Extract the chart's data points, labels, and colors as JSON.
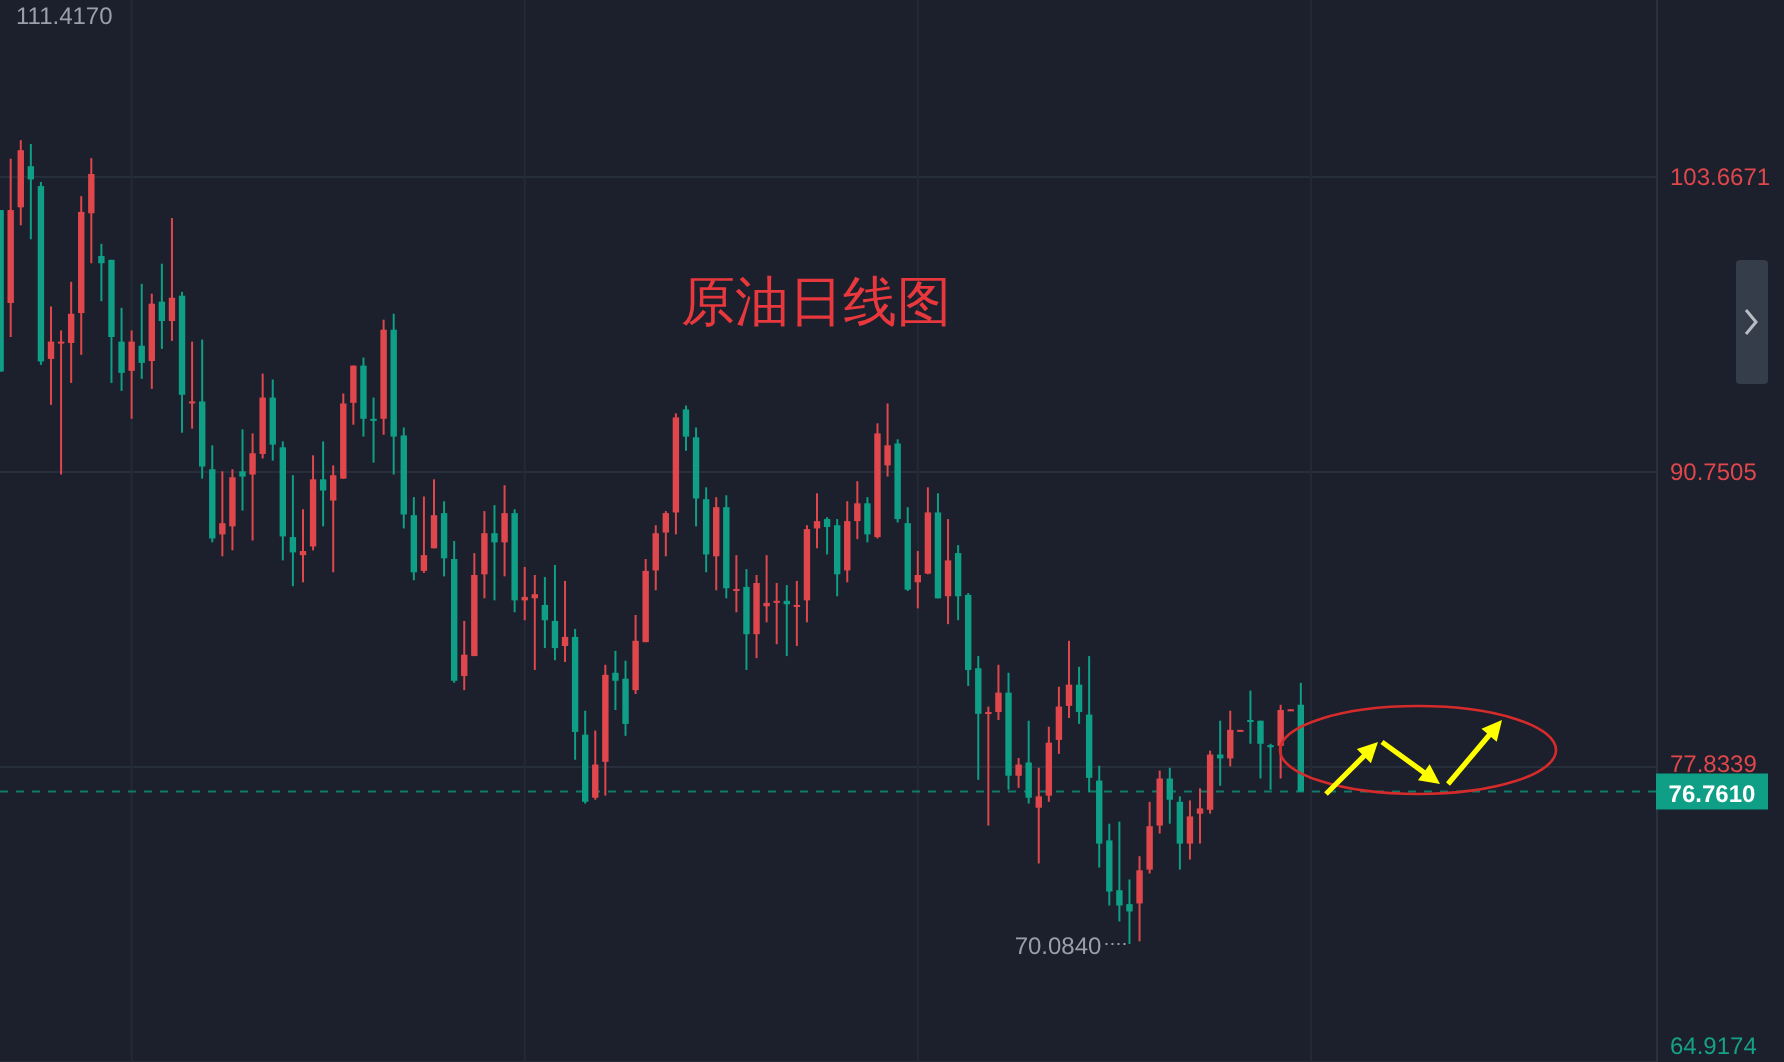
{
  "chart_data": {
    "type": "candlestick",
    "title": "原油日线图",
    "categories": [
      null,
      null,
      null,
      null,
      null,
      null,
      null,
      null,
      null,
      null,
      null,
      null,
      null,
      null,
      null,
      null,
      null,
      null,
      null,
      null,
      null,
      null,
      null,
      null,
      null,
      null,
      null,
      null,
      null,
      null,
      null,
      null,
      null,
      null,
      null,
      null,
      null,
      null,
      null,
      null,
      null,
      null,
      null,
      null,
      null,
      null,
      null,
      null,
      null,
      null,
      null,
      null,
      null,
      null,
      null,
      null,
      null,
      null,
      null,
      null,
      null,
      null,
      null,
      null,
      null,
      null,
      null,
      null,
      null,
      null,
      null,
      null,
      null,
      null,
      null,
      null,
      null,
      null,
      null,
      null,
      null,
      null,
      null,
      null,
      null,
      null,
      null,
      null,
      null,
      null,
      null,
      null,
      null,
      null,
      null,
      null,
      null,
      null,
      null,
      null,
      null,
      null,
      null,
      null,
      null,
      null,
      null,
      null,
      null,
      null,
      null,
      null,
      null,
      null,
      null,
      null,
      null,
      null,
      null,
      null,
      null,
      null,
      null,
      null,
      null,
      null,
      null,
      null,
      null,
      null,
      null,
      null,
      null,
      null,
      null,
      null,
      null,
      null,
      null,
      null,
      null,
      null,
      null,
      null,
      null,
      null,
      null,
      null,
      null,
      null,
      null,
      null,
      null,
      null,
      null,
      null,
      null,
      null,
      null,
      null,
      null,
      null,
      null,
      null,
      null
    ],
    "ohlc": [
      [
        102.22,
        102.22,
        95.15,
        95.15
      ],
      [
        98.15,
        104.47,
        96.66,
        102.22
      ],
      [
        102.34,
        105.28,
        101.55,
        104.84
      ],
      [
        104.14,
        105.11,
        100.94,
        103.56
      ],
      [
        103.27,
        103.45,
        95.44,
        95.59
      ],
      [
        95.7,
        98.0,
        93.69,
        96.46
      ],
      [
        96.4,
        96.95,
        90.64,
        96.46
      ],
      [
        96.4,
        99.08,
        94.65,
        97.68
      ],
      [
        97.71,
        102.83,
        95.88,
        102.14
      ],
      [
        102.08,
        104.49,
        99.89,
        103.8
      ],
      [
        100.21,
        100.74,
        98.23,
        99.89
      ],
      [
        100.04,
        100.04,
        94.65,
        96.66
      ],
      [
        96.46,
        97.94,
        94.3,
        95.09
      ],
      [
        95.18,
        96.95,
        93.08,
        96.46
      ],
      [
        96.28,
        98.99,
        94.83,
        95.53
      ],
      [
        95.61,
        98.56,
        94.39,
        98.12
      ],
      [
        98.21,
        99.87,
        96.14,
        97.36
      ],
      [
        97.36,
        101.87,
        96.49,
        98.38
      ],
      [
        98.47,
        98.64,
        92.47,
        94.13
      ],
      [
        93.78,
        96.46,
        92.65,
        93.84
      ],
      [
        93.84,
        96.55,
        90.46,
        90.99
      ],
      [
        90.87,
        91.92,
        87.67,
        87.84
      ],
      [
        88.02,
        90.78,
        87.06,
        88.51
      ],
      [
        88.37,
        90.87,
        87.32,
        90.52
      ],
      [
        90.78,
        92.62,
        89.06,
        90.55
      ],
      [
        90.64,
        92.44,
        87.75,
        91.57
      ],
      [
        91.54,
        95.06,
        91.34,
        94.01
      ],
      [
        94.01,
        94.8,
        91.25,
        91.95
      ],
      [
        91.83,
        92.09,
        86.88,
        87.93
      ],
      [
        87.9,
        90.61,
        85.75,
        87.23
      ],
      [
        87.11,
        89.12,
        85.92,
        87.29
      ],
      [
        87.49,
        91.48,
        87.32,
        90.43
      ],
      [
        90.43,
        92.09,
        88.37,
        89.94
      ],
      [
        89.5,
        91.04,
        86.36,
        90.61
      ],
      [
        90.46,
        94.19,
        90.46,
        93.75
      ],
      [
        93.78,
        95.41,
        92.82,
        95.41
      ],
      [
        95.41,
        95.76,
        92.3,
        93.08
      ],
      [
        93.08,
        94.01,
        91.16,
        92.99
      ],
      [
        93.08,
        97.42,
        92.38,
        96.98
      ],
      [
        96.98,
        97.68,
        90.64,
        92.3
      ],
      [
        92.35,
        92.7,
        88.28,
        88.89
      ],
      [
        88.86,
        89.65,
        86.01,
        86.36
      ],
      [
        86.42,
        89.68,
        86.33,
        87.11
      ],
      [
        87.41,
        90.43,
        87.41,
        88.86
      ],
      [
        88.95,
        89.47,
        86.18,
        86.97
      ],
      [
        86.94,
        87.73,
        81.52,
        81.61
      ],
      [
        81.82,
        84.23,
        81.2,
        82.75
      ],
      [
        82.69,
        87.2,
        82.69,
        86.24
      ],
      [
        86.27,
        89.04,
        85.22,
        88.07
      ],
      [
        88.07,
        89.3,
        85.13,
        87.67
      ],
      [
        87.67,
        90.17,
        86.18,
        88.95
      ],
      [
        88.95,
        89.12,
        84.61,
        85.13
      ],
      [
        85.13,
        86.59,
        84.26,
        85.28
      ],
      [
        85.22,
        86.24,
        82.08,
        85.4
      ],
      [
        84.93,
        86.15,
        83.04,
        84.26
      ],
      [
        84.23,
        86.68,
        82.51,
        83.04
      ],
      [
        83.13,
        85.98,
        82.43,
        83.53
      ],
      [
        83.53,
        83.88,
        78.15,
        79.37
      ],
      [
        79.25,
        80.3,
        76.23,
        76.31
      ],
      [
        76.49,
        79.43,
        76.4,
        77.94
      ],
      [
        78.06,
        82.31,
        76.58,
        81.87
      ],
      [
        81.96,
        82.92,
        80.33,
        81.61
      ],
      [
        81.7,
        82.49,
        79.2,
        79.72
      ],
      [
        81.2,
        84.49,
        81.03,
        83.36
      ],
      [
        83.3,
        86.94,
        83.3,
        86.42
      ],
      [
        86.44,
        88.42,
        85.57,
        88.07
      ],
      [
        88.1,
        89.04,
        87.06,
        88.95
      ],
      [
        88.98,
        93.32,
        88.02,
        93.14
      ],
      [
        93.49,
        93.66,
        91.68,
        92.3
      ],
      [
        92.27,
        92.7,
        88.37,
        89.59
      ],
      [
        89.56,
        90.08,
        86.36,
        87.14
      ],
      [
        87.06,
        89.65,
        85.57,
        89.21
      ],
      [
        89.21,
        89.73,
        85.22,
        85.66
      ],
      [
        85.57,
        87.11,
        84.61,
        85.63
      ],
      [
        85.72,
        86.5,
        82.08,
        83.65
      ],
      [
        83.65,
        86.24,
        82.6,
        85.89
      ],
      [
        84.87,
        87.11,
        84.17,
        85.02
      ],
      [
        85.05,
        85.89,
        83.21,
        85.11
      ],
      [
        85.11,
        85.8,
        82.69,
        84.96
      ],
      [
        84.87,
        85.98,
        83.13,
        84.93
      ],
      [
        85.13,
        88.42,
        84.17,
        88.25
      ],
      [
        88.28,
        89.82,
        87.41,
        88.6
      ],
      [
        88.69,
        88.77,
        87.14,
        88.34
      ],
      [
        88.42,
        88.69,
        85.31,
        86.27
      ],
      [
        86.44,
        89.47,
        85.92,
        88.6
      ],
      [
        88.6,
        90.35,
        87.81,
        89.38
      ],
      [
        89.38,
        89.65,
        87.67,
        88.02
      ],
      [
        87.9,
        92.88,
        87.84,
        92.44
      ],
      [
        91.04,
        93.75,
        90.55,
        91.92
      ],
      [
        92.0,
        92.18,
        88.54,
        88.69
      ],
      [
        88.51,
        89.21,
        85.54,
        85.6
      ],
      [
        85.92,
        87.29,
        84.78,
        86.24
      ],
      [
        86.3,
        90.08,
        86.27,
        88.98
      ],
      [
        88.98,
        89.82,
        85.22,
        85.22
      ],
      [
        85.31,
        88.69,
        84.09,
        86.88
      ],
      [
        87.2,
        87.55,
        84.26,
        85.31
      ],
      [
        85.37,
        85.45,
        81.38,
        82.08
      ],
      [
        82.16,
        82.69,
        77.27,
        80.16
      ],
      [
        80.19,
        80.48,
        75.27,
        80.24
      ],
      [
        80.24,
        82.31,
        79.89,
        81.09
      ],
      [
        81.09,
        81.96,
        76.84,
        77.45
      ],
      [
        77.45,
        78.23,
        76.92,
        77.94
      ],
      [
        78.03,
        79.86,
        76.23,
        76.49
      ],
      [
        76.05,
        77.8,
        73.61,
        76.55
      ],
      [
        76.58,
        79.6,
        76.31,
        78.9
      ],
      [
        79.02,
        81.35,
        78.41,
        80.48
      ],
      [
        80.51,
        83.36,
        79.98,
        81.44
      ],
      [
        81.44,
        82.22,
        79.72,
        80.24
      ],
      [
        80.13,
        82.69,
        76.75,
        77.36
      ],
      [
        77.24,
        77.89,
        73.43,
        74.48
      ],
      [
        74.62,
        75.35,
        71.77,
        72.38
      ],
      [
        72.44,
        75.44,
        71.07,
        71.77
      ],
      [
        71.83,
        72.91,
        70.084,
        71.51
      ],
      [
        71.86,
        73.93,
        70.2,
        73.31
      ],
      [
        73.34,
        76.31,
        73.17,
        75.24
      ],
      [
        75.27,
        77.68,
        74.92,
        77.33
      ],
      [
        77.33,
        77.8,
        75.35,
        76.4
      ],
      [
        76.31,
        76.55,
        73.34,
        74.48
      ],
      [
        74.48,
        76.37,
        73.78,
        75.67
      ],
      [
        75.79,
        76.9,
        74.48,
        76.02
      ],
      [
        75.96,
        78.55,
        75.79,
        78.38
      ],
      [
        78.38,
        79.86,
        77.01,
        78.21
      ],
      [
        78.21,
        80.3,
        77.86,
        79.46
      ],
      [
        79.4,
        79.46,
        79.4,
        79.46
      ],
      [
        79.89,
        81.18,
        78.85,
        79.81
      ],
      [
        79.86,
        79.86,
        77.33,
        78.85
      ],
      [
        78.79,
        78.85,
        76.84,
        78.7
      ],
      [
        78.76,
        80.56,
        77.33,
        80.33
      ],
      [
        80.3,
        80.36,
        80.3,
        80.36
      ],
      [
        80.56,
        81.52,
        76.761,
        76.761
      ],
      null,
      null,
      null,
      null,
      null,
      null,
      null,
      null,
      null,
      null,
      null,
      null,
      null,
      null,
      null,
      null,
      null,
      null,
      null,
      null,
      null,
      null,
      null,
      null,
      null,
      null,
      null,
      null,
      null,
      null,
      null,
      null,
      null,
      null,
      null
    ],
    "ylim": [
      64.9174,
      111.417
    ],
    "yticks": [
      64.9174,
      77.8339,
      90.7505,
      103.6671
    ],
    "grid": true,
    "ref_lines": [
      {
        "axis": "y",
        "value": 76.761,
        "label": "76.7610",
        "color": "#0e9f86",
        "line_style": "dashed"
      }
    ],
    "annotations": [
      "111.4170",
      "70.0840"
    ]
  }
}
